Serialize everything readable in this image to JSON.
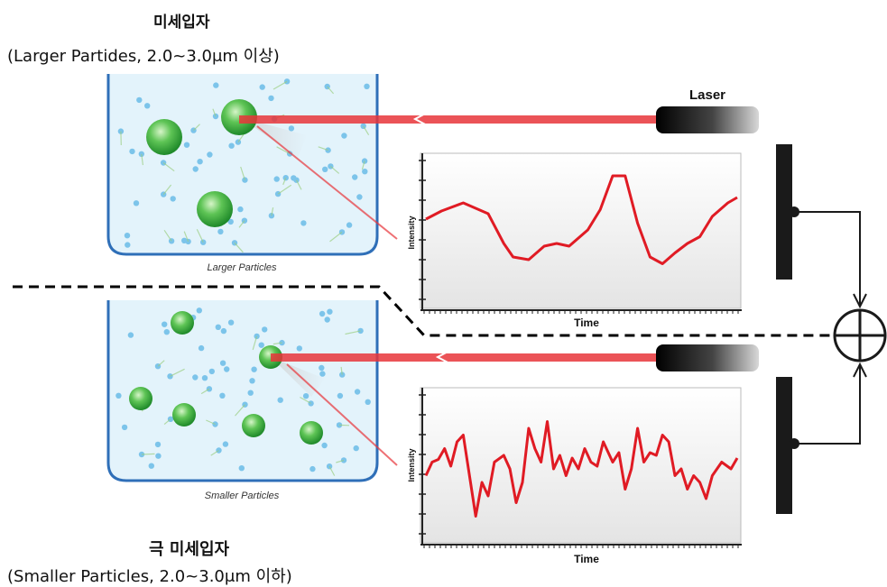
{
  "top": {
    "title": "미세입자",
    "subtitle": "(Larger Partides, 2.0~3.0μm 이상)",
    "container_caption": "Larger Particles",
    "laser_label": "Laser",
    "graph": {
      "ylabel": "Intensity",
      "xlabel": "Time"
    }
  },
  "bottom": {
    "title": "극 미세입자",
    "subtitle": "(Smaller Particles, 2.0~3.0μm 이하)",
    "container_caption": "Smaller Particles",
    "graph": {
      "ylabel": "Intensity",
      "xlabel": "Time"
    }
  },
  "colors": {
    "laser_beam": "#e8353a",
    "signal_line": "#e01b24",
    "water": "#e3f3fb",
    "container_border": "#2f6fb8",
    "particle": "#4fc04a",
    "small_dot": "#7cc4ea"
  },
  "icons": {
    "laser_device": "laser-emitter-icon",
    "detector": "detector-plate-icon",
    "combiner": "circle-plus-icon"
  }
}
